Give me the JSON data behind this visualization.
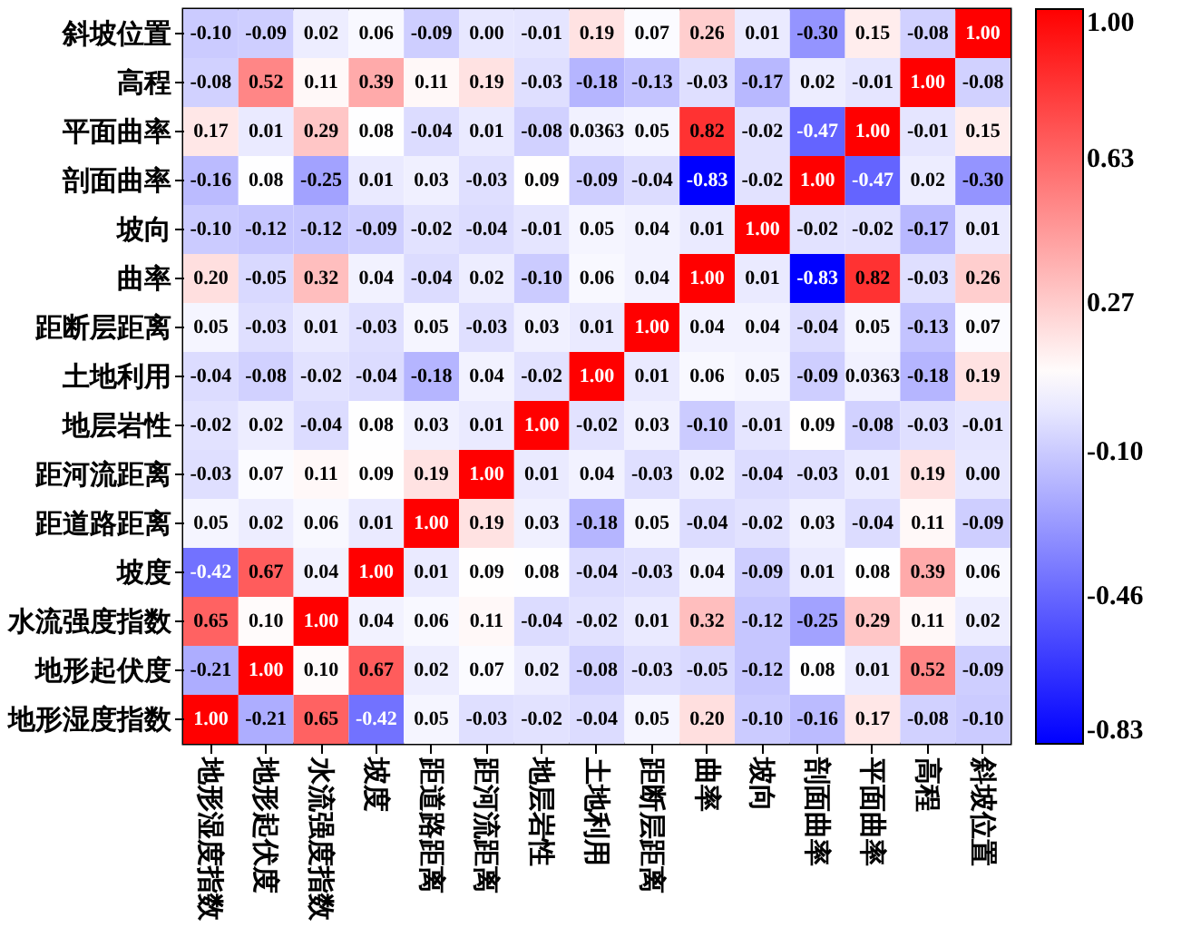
{
  "chart_data": {
    "type": "heatmap",
    "categories": [
      "地形湿度指数",
      "地形起伏度",
      "水流强度指数",
      "坡度",
      "距道路距离",
      "距河流距离",
      "地层岩性",
      "土地利用",
      "距断层距离",
      "曲率",
      "坡向",
      "剖面曲率",
      "平面曲率",
      "高程",
      "斜坡位置"
    ],
    "y_categories": [
      "斜坡位置",
      "高程",
      "平面曲率",
      "剖面曲率",
      "坡向",
      "曲率",
      "距断层距离",
      "土地利用",
      "地层岩性",
      "距河流距离",
      "距道路距离",
      "坡度",
      "水流强度指数",
      "地形起伏度",
      "地形湿度指数"
    ],
    "cells": [
      [
        -0.1,
        -0.09,
        0.02,
        0.06,
        -0.09,
        0.0,
        -0.01,
        0.19,
        0.07,
        0.26,
        0.01,
        -0.3,
        0.15,
        -0.08,
        1.0
      ],
      [
        -0.08,
        0.52,
        0.11,
        0.39,
        0.11,
        0.19,
        -0.03,
        -0.18,
        -0.13,
        -0.03,
        -0.17,
        0.02,
        -0.01,
        1.0,
        -0.08
      ],
      [
        0.17,
        0.01,
        0.29,
        0.08,
        -0.04,
        0.01,
        -0.08,
        0.0363,
        0.05,
        0.82,
        -0.02,
        -0.47,
        1.0,
        -0.01,
        0.15
      ],
      [
        -0.16,
        0.08,
        -0.25,
        0.01,
        0.03,
        -0.03,
        0.09,
        -0.09,
        -0.04,
        -0.83,
        -0.02,
        1.0,
        -0.47,
        0.02,
        -0.3
      ],
      [
        -0.1,
        -0.12,
        -0.12,
        -0.09,
        -0.02,
        -0.04,
        -0.01,
        0.05,
        0.04,
        0.01,
        1.0,
        -0.02,
        -0.02,
        -0.17,
        0.01
      ],
      [
        0.2,
        -0.05,
        0.32,
        0.04,
        -0.04,
        0.02,
        -0.1,
        0.06,
        0.04,
        1.0,
        0.01,
        -0.83,
        0.82,
        -0.03,
        0.26
      ],
      [
        0.05,
        -0.03,
        0.01,
        -0.03,
        0.05,
        -0.03,
        0.03,
        0.01,
        1.0,
        0.04,
        0.04,
        -0.04,
        0.05,
        -0.13,
        0.07
      ],
      [
        -0.04,
        -0.08,
        -0.02,
        -0.04,
        -0.18,
        0.04,
        -0.02,
        1.0,
        0.01,
        0.06,
        0.05,
        -0.09,
        0.0363,
        -0.18,
        0.19
      ],
      [
        -0.02,
        0.02,
        -0.04,
        0.08,
        0.03,
        0.01,
        1.0,
        -0.02,
        0.03,
        -0.1,
        -0.01,
        0.09,
        -0.08,
        -0.03,
        -0.01
      ],
      [
        -0.03,
        0.07,
        0.11,
        0.09,
        0.19,
        1.0,
        0.01,
        0.04,
        -0.03,
        0.02,
        -0.04,
        -0.03,
        0.01,
        0.19,
        0.0
      ],
      [
        0.05,
        0.02,
        0.06,
        0.01,
        1.0,
        0.19,
        0.03,
        -0.18,
        0.05,
        -0.04,
        -0.02,
        0.03,
        -0.04,
        0.11,
        -0.09
      ],
      [
        -0.42,
        0.67,
        0.04,
        1.0,
        0.01,
        0.09,
        0.08,
        -0.04,
        -0.03,
        0.04,
        -0.09,
        0.01,
        0.08,
        0.39,
        0.06
      ],
      [
        0.65,
        0.1,
        1.0,
        0.04,
        0.06,
        0.11,
        -0.04,
        -0.02,
        0.01,
        0.32,
        -0.12,
        -0.25,
        0.29,
        0.11,
        0.02
      ],
      [
        -0.21,
        1.0,
        0.1,
        0.67,
        0.02,
        0.07,
        0.02,
        -0.08,
        -0.03,
        -0.05,
        -0.12,
        0.08,
        0.01,
        0.52,
        -0.09
      ],
      [
        1.0,
        -0.21,
        0.65,
        -0.42,
        0.05,
        -0.03,
        -0.02,
        -0.04,
        0.05,
        0.2,
        -0.1,
        -0.16,
        0.17,
        -0.08,
        -0.1
      ]
    ],
    "cell_labels": [
      [
        "-0.10",
        "-0.09",
        "0.02",
        "0.06",
        "-0.09",
        "0.00",
        "-0.01",
        "0.19",
        "0.07",
        "0.26",
        "0.01",
        "-0.30",
        "0.15",
        "-0.08",
        "1.00"
      ],
      [
        "-0.08",
        "0.52",
        "0.11",
        "0.39",
        "0.11",
        "0.19",
        "-0.03",
        "-0.18",
        "-0.13",
        "-0.03",
        "-0.17",
        "0.02",
        "-0.01",
        "1.00",
        "-0.08"
      ],
      [
        "0.17",
        "0.01",
        "0.29",
        "0.08",
        "-0.04",
        "0.01",
        "-0.08",
        "0.0363",
        "0.05",
        "0.82",
        "-0.02",
        "-0.47",
        "1.00",
        "-0.01",
        "0.15"
      ],
      [
        "-0.16",
        "0.08",
        "-0.25",
        "0.01",
        "0.03",
        "-0.03",
        "0.09",
        "-0.09",
        "-0.04",
        "-0.83",
        "-0.02",
        "1.00",
        "-0.47",
        "0.02",
        "-0.30"
      ],
      [
        "-0.10",
        "-0.12",
        "-0.12",
        "-0.09",
        "-0.02",
        "-0.04",
        "-0.01",
        "0.05",
        "0.04",
        "0.01",
        "1.00",
        "-0.02",
        "-0.02",
        "-0.17",
        "0.01"
      ],
      [
        "0.20",
        "-0.05",
        "0.32",
        "0.04",
        "-0.04",
        "0.02",
        "-0.10",
        "0.06",
        "0.04",
        "1.00",
        "0.01",
        "-0.83",
        "0.82",
        "-0.03",
        "0.26"
      ],
      [
        "0.05",
        "-0.03",
        "0.01",
        "-0.03",
        "0.05",
        "-0.03",
        "0.03",
        "0.01",
        "1.00",
        "0.04",
        "0.04",
        "-0.04",
        "0.05",
        "-0.13",
        "0.07"
      ],
      [
        "-0.04",
        "-0.08",
        "-0.02",
        "-0.04",
        "-0.18",
        "0.04",
        "-0.02",
        "1.00",
        "0.01",
        "0.06",
        "0.05",
        "-0.09",
        "0.0363",
        "-0.18",
        "0.19"
      ],
      [
        "-0.02",
        "0.02",
        "-0.04",
        "0.08",
        "0.03",
        "0.01",
        "1.00",
        "-0.02",
        "0.03",
        "-0.10",
        "-0.01",
        "0.09",
        "-0.08",
        "-0.03",
        "-0.01"
      ],
      [
        "-0.03",
        "0.07",
        "0.11",
        "0.09",
        "0.19",
        "1.00",
        "0.01",
        "0.04",
        "-0.03",
        "0.02",
        "-0.04",
        "-0.03",
        "0.01",
        "0.19",
        "0.00"
      ],
      [
        "0.05",
        "0.02",
        "0.06",
        "0.01",
        "1.00",
        "0.19",
        "0.03",
        "-0.18",
        "0.05",
        "-0.04",
        "-0.02",
        "0.03",
        "-0.04",
        "0.11",
        "-0.09"
      ],
      [
        "-0.42",
        "0.67",
        "0.04",
        "1.00",
        "0.01",
        "0.09",
        "0.08",
        "-0.04",
        "-0.03",
        "0.04",
        "-0.09",
        "0.01",
        "0.08",
        "0.39",
        "0.06"
      ],
      [
        "0.65",
        "0.10",
        "1.00",
        "0.04",
        "0.06",
        "0.11",
        "-0.04",
        "-0.02",
        "0.01",
        "0.32",
        "-0.12",
        "-0.25",
        "0.29",
        "0.11",
        "0.02"
      ],
      [
        "-0.21",
        "1.00",
        "0.10",
        "0.67",
        "0.02",
        "0.07",
        "0.02",
        "-0.08",
        "-0.03",
        "-0.05",
        "-0.12",
        "0.08",
        "0.01",
        "0.52",
        "-0.09"
      ],
      [
        "1.00",
        "-0.21",
        "0.65",
        "-0.42",
        "0.05",
        "-0.03",
        "-0.02",
        "-0.04",
        "0.05",
        "0.20",
        "-0.10",
        "-0.16",
        "0.17",
        "-0.08",
        "-0.10"
      ]
    ],
    "clim": [
      -0.83,
      1.0
    ],
    "cticks": [
      -0.83,
      {
        "value": -0.46,
        "label": "-0.46"
      },
      {
        "value": -0.1,
        "label": "-0.10"
      },
      0.27,
      0.63,
      {
        "value": 1,
        "label": "1.00"
      }
    ]
  }
}
